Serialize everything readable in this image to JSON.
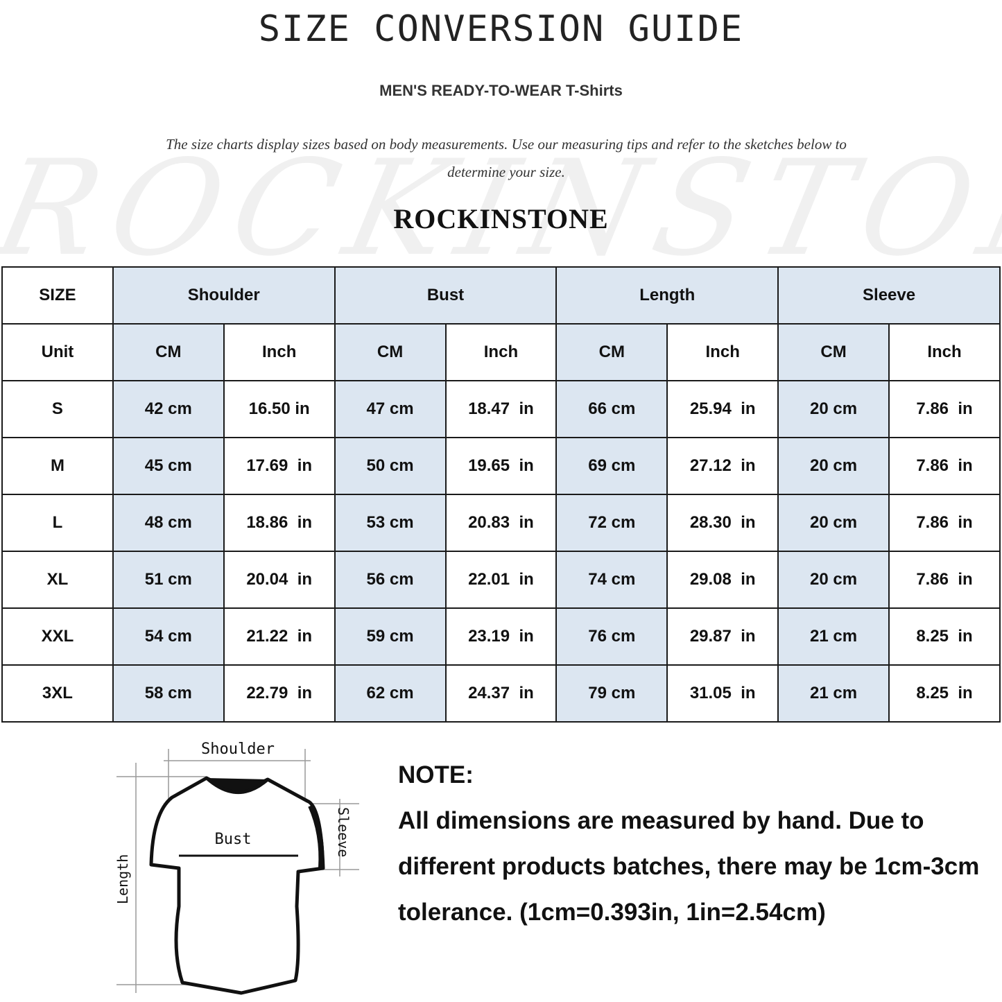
{
  "title": "SIZE CONVERSION GUIDE",
  "subtitle": "MEN'S READY-TO-WEAR T-Shirts",
  "intro": "The size charts display sizes based on body measurements. Use our measuring tips and refer to the sketches below to determine your size.",
  "watermark": "ROCKINSTONE",
  "brand": "ROCKINSTONE",
  "colors": {
    "header_fill": "#dce6f1",
    "border": "#1a1a1a"
  },
  "table": {
    "size_header": "SIZE",
    "groups": [
      "Shoulder",
      "Bust",
      "Length",
      "Sleeve"
    ],
    "unit_label": "Unit",
    "units": [
      "CM",
      "Inch",
      "CM",
      "Inch",
      "CM",
      "Inch",
      "CM",
      "Inch"
    ],
    "rows": [
      {
        "size": "S",
        "values": [
          "42 cm",
          "16.50 in",
          "47 cm",
          "18.47  in",
          "66 cm",
          "25.94  in",
          "20 cm",
          "7.86  in"
        ]
      },
      {
        "size": "M",
        "values": [
          "45 cm",
          "17.69  in",
          "50 cm",
          "19.65  in",
          "69 cm",
          "27.12  in",
          "20 cm",
          "7.86  in"
        ]
      },
      {
        "size": "L",
        "values": [
          "48 cm",
          "18.86  in",
          "53 cm",
          "20.83  in",
          "72 cm",
          "28.30  in",
          "20 cm",
          "7.86  in"
        ]
      },
      {
        "size": "XL",
        "values": [
          "51 cm",
          "20.04  in",
          "56 cm",
          "22.01  in",
          "74 cm",
          "29.08  in",
          "20 cm",
          "7.86  in"
        ]
      },
      {
        "size": "XXL",
        "values": [
          "54 cm",
          "21.22  in",
          "59 cm",
          "23.19  in",
          "76 cm",
          "29.87  in",
          "21 cm",
          "8.25  in"
        ]
      },
      {
        "size": "3XL",
        "values": [
          "58 cm",
          "22.79  in",
          "62 cm",
          "24.37  in",
          "79 cm",
          "31.05  in",
          "21 cm",
          "8.25  in"
        ]
      }
    ]
  },
  "sketch": {
    "shoulder": "Shoulder",
    "bust": "Bust",
    "sleeve": "Sleeve",
    "length": "Length"
  },
  "note": {
    "heading": "NOTE:",
    "body": "All dimensions are measured by hand. Due to different products batches, there may be 1cm-3cm tolerance. (1cm=0.393in, 1in=2.54cm)"
  }
}
